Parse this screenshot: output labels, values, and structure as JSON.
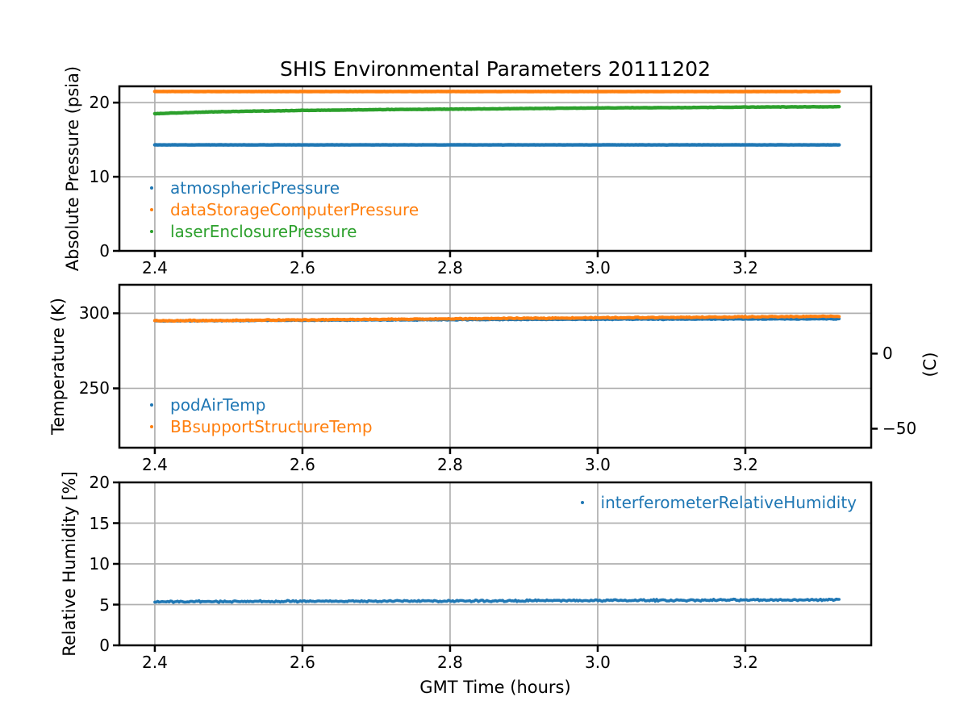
{
  "figure": {
    "title": "SHIS Environmental Parameters 20111202",
    "xlabel": "GMT Time (hours)",
    "background": "#ffffff",
    "grid_color": "#b0b0b0",
    "spine_color": "#000000"
  },
  "chart_data": [
    {
      "type": "scatter",
      "ylabel": "Absolute Pressure (psia)",
      "xlim": [
        2.352,
        3.3705
      ],
      "ylim": [
        0,
        22.2
      ],
      "xtick_values": [
        2.4,
        2.6,
        2.8,
        3.0,
        3.2
      ],
      "xtick_labels": [
        "2.4",
        "2.6",
        "2.8",
        "3.0",
        "3.2"
      ],
      "ytick_values": [
        0,
        10,
        20
      ],
      "ytick_labels": [
        "0",
        "10",
        "20"
      ],
      "grid": true,
      "legend_loc": "lower left",
      "series": [
        {
          "name": "atmosphericPressure",
          "color": "#1f77b4",
          "noise": 0.02,
          "lw": 4.4,
          "trend": [
            [
              2.4,
              14.3
            ],
            [
              3.327,
              14.3
            ]
          ]
        },
        {
          "name": "dataStorageComputerPressure",
          "color": "#ff7f0e",
          "noise": 0.02,
          "lw": 4.4,
          "trend": [
            [
              2.4,
              21.5
            ],
            [
              3.327,
              21.5
            ]
          ]
        },
        {
          "name": "laserEnclosurePressure",
          "color": "#2ca02c",
          "noise": 0.03,
          "lw": 4.4,
          "trend": [
            [
              2.4,
              18.5
            ],
            [
              2.45,
              18.68
            ],
            [
              2.5,
              18.8
            ],
            [
              2.6,
              18.95
            ],
            [
              2.7,
              19.05
            ],
            [
              2.8,
              19.12
            ],
            [
              2.9,
              19.2
            ],
            [
              3.0,
              19.28
            ],
            [
              3.1,
              19.33
            ],
            [
              3.2,
              19.4
            ],
            [
              3.327,
              19.45
            ]
          ]
        }
      ]
    },
    {
      "type": "scatter",
      "ylabel": "Temperature (K)",
      "xlim": [
        2.352,
        3.3705
      ],
      "ylim": [
        210.5,
        319
      ],
      "xtick_values": [
        2.4,
        2.6,
        2.8,
        3.0,
        3.2
      ],
      "xtick_labels": [
        "2.4",
        "2.6",
        "2.8",
        "3.0",
        "3.2"
      ],
      "ytick_values": [
        250,
        300
      ],
      "ytick_labels": [
        "250",
        "300"
      ],
      "grid": true,
      "legend_loc": "lower left",
      "right_axis": {
        "label": "(C)",
        "tick_values_k": [
          273.15,
          223.15
        ],
        "tick_labels": [
          "0",
          "−50"
        ]
      },
      "series": [
        {
          "name": "podAirTemp",
          "color": "#1f77b4",
          "noise": 0.32,
          "lw": 3.8,
          "trend": [
            [
              2.4,
              294.9
            ],
            [
              2.6,
              295.3
            ],
            [
              2.8,
              295.7
            ],
            [
              3.0,
              295.95
            ],
            [
              3.2,
              296.1
            ],
            [
              3.327,
              296.2
            ]
          ]
        },
        {
          "name": "BBsupportStructureTemp",
          "color": "#ff7f0e",
          "noise": 0.38,
          "lw": 4.0,
          "trend": [
            [
              2.4,
              295.0
            ],
            [
              2.6,
              295.6
            ],
            [
              2.8,
              296.3
            ],
            [
              3.0,
              297.0
            ],
            [
              3.2,
              297.6
            ],
            [
              3.327,
              298.0
            ]
          ]
        }
      ]
    },
    {
      "type": "scatter",
      "ylabel": "Relative Humidity [%]",
      "xlim": [
        2.352,
        3.3705
      ],
      "ylim": [
        0,
        20
      ],
      "xtick_values": [
        2.4,
        2.6,
        2.8,
        3.0,
        3.2
      ],
      "xtick_labels": [
        "2.4",
        "2.6",
        "2.8",
        "3.0",
        "3.2"
      ],
      "ytick_values": [
        0,
        5,
        10,
        15,
        20
      ],
      "ytick_labels": [
        "0",
        "5",
        "10",
        "15",
        "20"
      ],
      "grid": true,
      "legend_loc": "upper right",
      "series": [
        {
          "name": "interferometerRelativeHumidity",
          "color": "#1f77b4",
          "noise": 0.13,
          "lw": 3.6,
          "trend": [
            [
              2.4,
              5.35
            ],
            [
              2.8,
              5.45
            ],
            [
              3.0,
              5.5
            ],
            [
              3.327,
              5.6
            ]
          ]
        }
      ]
    }
  ]
}
